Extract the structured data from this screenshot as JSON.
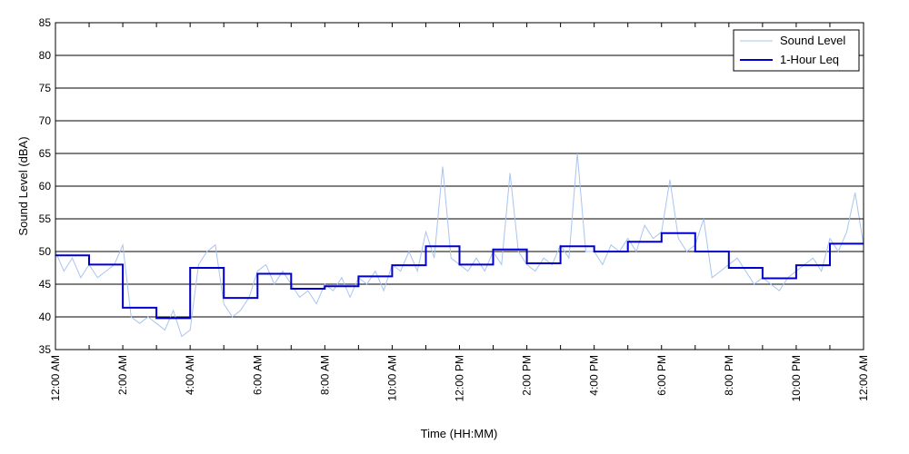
{
  "chart_data": {
    "type": "line",
    "title": "",
    "xlabel": "Time (HH:MM)",
    "ylabel": "Sound Level (dBA)",
    "ylim": [
      35,
      85
    ],
    "yticks": [
      35,
      40,
      45,
      50,
      55,
      60,
      65,
      70,
      75,
      80,
      85
    ],
    "xlim_hours": [
      0,
      24
    ],
    "x_tick_hours": [
      0,
      2,
      4,
      6,
      8,
      10,
      12,
      14,
      16,
      18,
      20,
      22,
      24
    ],
    "x_tick_labels": [
      "12:00 AM",
      "2:00 AM",
      "4:00 AM",
      "6:00 AM",
      "8:00 AM",
      "10:00 AM",
      "12:00 PM",
      "2:00 PM",
      "4:00 PM",
      "6:00 PM",
      "8:00 PM",
      "10:00 PM",
      "12:00 AM"
    ],
    "grid": "horizontal",
    "legend_position": "top-right",
    "series": [
      {
        "name": "Sound Level",
        "color": "#a8c4f0",
        "x_hours": [
          0,
          0.25,
          0.5,
          0.75,
          1,
          1.25,
          1.5,
          1.75,
          2,
          2.25,
          2.5,
          2.75,
          3,
          3.25,
          3.5,
          3.75,
          4,
          4.25,
          4.5,
          4.75,
          5,
          5.25,
          5.5,
          5.75,
          6,
          6.25,
          6.5,
          6.75,
          7,
          7.25,
          7.5,
          7.75,
          8,
          8.25,
          8.5,
          8.75,
          9,
          9.25,
          9.5,
          9.75,
          10,
          10.25,
          10.5,
          10.75,
          11,
          11.25,
          11.5,
          11.75,
          12,
          12.25,
          12.5,
          12.75,
          13,
          13.25,
          13.5,
          13.75,
          14,
          14.25,
          14.5,
          14.75,
          15,
          15.25,
          15.5,
          15.75,
          16,
          16.25,
          16.5,
          16.75,
          17,
          17.25,
          17.5,
          17.75,
          18,
          18.25,
          18.5,
          18.75,
          19,
          19.25,
          19.5,
          19.75,
          20,
          20.25,
          20.5,
          20.75,
          21,
          21.25,
          21.5,
          21.75,
          22,
          22.25,
          22.5,
          22.75,
          23,
          23.25,
          23.5,
          23.75,
          24
        ],
        "values": [
          50,
          47,
          49,
          46,
          48,
          46,
          47,
          48,
          51,
          40,
          39,
          40,
          39,
          38,
          41,
          37,
          38,
          48,
          50,
          51,
          42,
          40,
          41,
          43,
          47,
          48,
          45,
          47,
          45,
          43,
          44,
          42,
          45,
          44,
          46,
          43,
          46,
          45,
          47,
          44,
          48,
          47,
          50,
          47,
          53,
          49,
          63,
          49,
          48,
          47,
          49,
          47,
          50,
          48,
          62,
          50,
          48,
          47,
          49,
          48,
          51,
          49,
          65,
          50,
          50,
          48,
          51,
          50,
          52,
          50,
          54,
          52,
          53,
          61,
          52,
          50,
          51,
          55,
          46,
          47,
          48,
          49,
          47,
          45,
          46,
          45,
          44,
          46,
          47,
          48,
          49,
          47,
          52,
          50,
          53,
          59,
          51
        ]
      },
      {
        "name": "1-Hour Leq",
        "color": "#0000cc",
        "step": "post",
        "x_hours": [
          0,
          1,
          2,
          3,
          4,
          5,
          6,
          7,
          8,
          9,
          10,
          11,
          12,
          13,
          14,
          15,
          16,
          17,
          18,
          19,
          20,
          21,
          22,
          23
        ],
        "values": [
          49.4,
          48.0,
          41.4,
          39.8,
          47.5,
          42.9,
          46.6,
          44.3,
          44.7,
          46.2,
          47.9,
          50.8,
          48.0,
          50.3,
          48.2,
          50.8,
          50.0,
          51.5,
          52.8,
          50.0,
          47.5,
          45.9,
          47.9,
          51.2
        ]
      }
    ]
  }
}
